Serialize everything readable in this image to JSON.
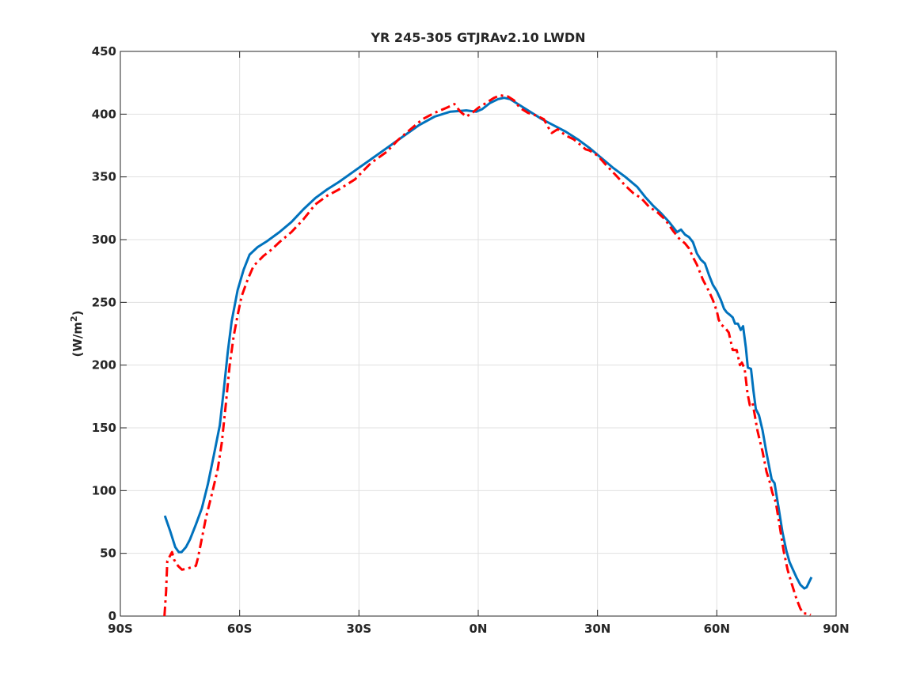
{
  "chart_data": {
    "type": "line",
    "title": "YR 245-305 GTJRAv2.10 LWDN",
    "xlabel": "",
    "ylabel": "(W/m",
    "ylabel_superscript": "2",
    "ylabel_close": ")",
    "xlim": [
      -90,
      90
    ],
    "ylim": [
      0,
      450
    ],
    "grid": true,
    "xticks": [
      {
        "value": -90,
        "label": "90S"
      },
      {
        "value": -60,
        "label": "60S"
      },
      {
        "value": -30,
        "label": "30S"
      },
      {
        "value": 0,
        "label": "0N"
      },
      {
        "value": 30,
        "label": "30N"
      },
      {
        "value": 60,
        "label": "60N"
      },
      {
        "value": 90,
        "label": "90N"
      }
    ],
    "yticks": [
      {
        "value": 0,
        "label": "0"
      },
      {
        "value": 50,
        "label": "50"
      },
      {
        "value": 100,
        "label": "100"
      },
      {
        "value": 150,
        "label": "150"
      },
      {
        "value": 200,
        "label": "200"
      },
      {
        "value": 250,
        "label": "250"
      },
      {
        "value": 300,
        "label": "300"
      },
      {
        "value": 350,
        "label": "350"
      },
      {
        "value": 400,
        "label": "400"
      },
      {
        "value": 450,
        "label": "450"
      }
    ],
    "series": [
      {
        "color": "#0072BD",
        "style": "solid",
        "points": [
          [
            -78.8,
            80
          ],
          [
            -77.5,
            68
          ],
          [
            -76.2,
            55
          ],
          [
            -75.3,
            51
          ],
          [
            -74.6,
            51
          ],
          [
            -73.5,
            55
          ],
          [
            -72.5,
            61
          ],
          [
            -71,
            73
          ],
          [
            -69.5,
            86
          ],
          [
            -68,
            105
          ],
          [
            -66.5,
            128
          ],
          [
            -65,
            152
          ],
          [
            -64,
            180
          ],
          [
            -63,
            210
          ],
          [
            -62,
            235
          ],
          [
            -60.5,
            260
          ],
          [
            -59,
            276
          ],
          [
            -57.5,
            288
          ],
          [
            -55.5,
            294
          ],
          [
            -53,
            299
          ],
          [
            -50,
            306
          ],
          [
            -47,
            314
          ],
          [
            -44,
            324
          ],
          [
            -41,
            333
          ],
          [
            -38,
            340
          ],
          [
            -35,
            346
          ],
          [
            -31,
            355
          ],
          [
            -27,
            364
          ],
          [
            -23,
            373
          ],
          [
            -19,
            382
          ],
          [
            -15,
            391
          ],
          [
            -11,
            398
          ],
          [
            -7,
            402
          ],
          [
            -3,
            403
          ],
          [
            -0.5,
            402
          ],
          [
            1,
            404
          ],
          [
            3,
            409
          ],
          [
            5,
            412
          ],
          [
            6.5,
            413
          ],
          [
            8,
            412
          ],
          [
            10,
            408
          ],
          [
            13,
            402
          ],
          [
            16,
            396
          ],
          [
            19,
            391
          ],
          [
            22,
            386
          ],
          [
            25,
            380
          ],
          [
            28,
            373
          ],
          [
            31,
            365
          ],
          [
            34,
            357
          ],
          [
            37,
            350
          ],
          [
            40,
            342
          ],
          [
            42,
            334
          ],
          [
            44,
            327
          ],
          [
            46,
            321
          ],
          [
            48,
            314
          ],
          [
            50,
            306
          ],
          [
            51,
            308
          ],
          [
            52,
            304
          ],
          [
            53,
            302
          ],
          [
            54,
            298
          ],
          [
            55,
            289
          ],
          [
            56,
            284
          ],
          [
            57,
            281
          ],
          [
            58,
            272
          ],
          [
            59,
            264
          ],
          [
            60,
            259
          ],
          [
            61,
            252
          ],
          [
            61.8,
            245
          ],
          [
            62.5,
            242
          ],
          [
            63.3,
            240
          ],
          [
            64,
            238
          ],
          [
            64.6,
            233
          ],
          [
            65.3,
            233
          ],
          [
            66,
            228
          ],
          [
            66.6,
            231
          ],
          [
            67.3,
            214
          ],
          [
            67.8,
            198
          ],
          [
            68.6,
            197
          ],
          [
            69.2,
            180
          ],
          [
            69.8,
            165
          ],
          [
            70.6,
            160
          ],
          [
            71.5,
            148
          ],
          [
            72.5,
            130
          ],
          [
            73.3,
            117
          ],
          [
            73.8,
            109
          ],
          [
            74.5,
            106
          ],
          [
            75.5,
            87
          ],
          [
            76.5,
            67
          ],
          [
            77.5,
            52
          ],
          [
            78.3,
            43
          ],
          [
            79,
            38
          ],
          [
            80,
            31
          ],
          [
            81,
            25
          ],
          [
            82,
            22
          ],
          [
            82.6,
            23
          ],
          [
            83.2,
            27
          ],
          [
            83.8,
            31
          ]
        ]
      },
      {
        "color": "#FF0000",
        "style": "dashdot",
        "points": [
          [
            -78.9,
            0
          ],
          [
            -78.5,
            20
          ],
          [
            -78.2,
            44
          ],
          [
            -77,
            51
          ],
          [
            -76.5,
            45
          ],
          [
            -75.5,
            40
          ],
          [
            -74.5,
            37
          ],
          [
            -73,
            38
          ],
          [
            -72,
            39
          ],
          [
            -71,
            40
          ],
          [
            -70.5,
            46
          ],
          [
            -69.5,
            62
          ],
          [
            -68.5,
            78
          ],
          [
            -67,
            97
          ],
          [
            -65.5,
            117
          ],
          [
            -64.5,
            138
          ],
          [
            -63.5,
            168
          ],
          [
            -62.5,
            200
          ],
          [
            -61.5,
            223
          ],
          [
            -60.5,
            240
          ],
          [
            -59.5,
            255
          ],
          [
            -58,
            268
          ],
          [
            -56.5,
            279
          ],
          [
            -54,
            287
          ],
          [
            -52,
            292
          ],
          [
            -50,
            298
          ],
          [
            -47,
            306
          ],
          [
            -44,
            316
          ],
          [
            -41,
            328
          ],
          [
            -38,
            335
          ],
          [
            -35,
            340
          ],
          [
            -31,
            348
          ],
          [
            -27,
            361
          ],
          [
            -23,
            370
          ],
          [
            -20,
            380
          ],
          [
            -17,
            388
          ],
          [
            -14,
            396
          ],
          [
            -11,
            401
          ],
          [
            -8,
            405
          ],
          [
            -6,
            408
          ],
          [
            -4.5,
            402
          ],
          [
            -3,
            398
          ],
          [
            -1.5,
            401
          ],
          [
            0,
            405
          ],
          [
            2,
            409
          ],
          [
            4,
            413
          ],
          [
            5.5,
            415
          ],
          [
            7.5,
            414
          ],
          [
            9,
            411
          ],
          [
            10.5,
            405
          ],
          [
            12.5,
            401
          ],
          [
            14.5,
            399
          ],
          [
            16.5,
            396
          ],
          [
            17.5,
            390
          ],
          [
            18.5,
            385
          ],
          [
            20,
            388
          ],
          [
            22,
            383
          ],
          [
            24,
            380
          ],
          [
            25.5,
            376
          ],
          [
            27,
            372
          ],
          [
            28,
            371
          ],
          [
            30,
            367
          ],
          [
            32,
            360
          ],
          [
            33.5,
            355
          ],
          [
            35,
            350
          ],
          [
            37,
            343
          ],
          [
            39,
            337
          ],
          [
            41,
            333
          ],
          [
            43,
            326
          ],
          [
            45,
            322
          ],
          [
            47,
            316
          ],
          [
            49,
            307
          ],
          [
            50.5,
            301
          ],
          [
            52,
            297
          ],
          [
            53,
            293
          ],
          [
            54,
            286
          ],
          [
            55,
            280
          ],
          [
            56.5,
            268
          ],
          [
            58,
            259
          ],
          [
            59,
            252
          ],
          [
            60,
            243
          ],
          [
            60.5,
            236
          ],
          [
            61.2,
            232
          ],
          [
            62,
            230
          ],
          [
            63,
            226
          ],
          [
            64,
            212
          ],
          [
            65,
            212
          ],
          [
            65.8,
            200
          ],
          [
            66.3,
            202
          ],
          [
            67,
            197
          ],
          [
            67.7,
            178
          ],
          [
            68.3,
            168
          ],
          [
            69,
            170
          ],
          [
            69.5,
            161
          ],
          [
            70.2,
            148
          ],
          [
            70.8,
            140
          ],
          [
            71.5,
            131
          ],
          [
            72.5,
            115
          ],
          [
            73.3,
            107
          ],
          [
            74,
            98
          ],
          [
            74.8,
            91
          ],
          [
            75.8,
            72
          ],
          [
            76.8,
            52
          ],
          [
            77.8,
            37
          ],
          [
            78.8,
            26
          ],
          [
            80,
            14
          ],
          [
            81,
            6
          ],
          [
            81.8,
            2
          ],
          [
            83,
            2
          ],
          [
            83.6,
            1
          ]
        ]
      }
    ]
  }
}
